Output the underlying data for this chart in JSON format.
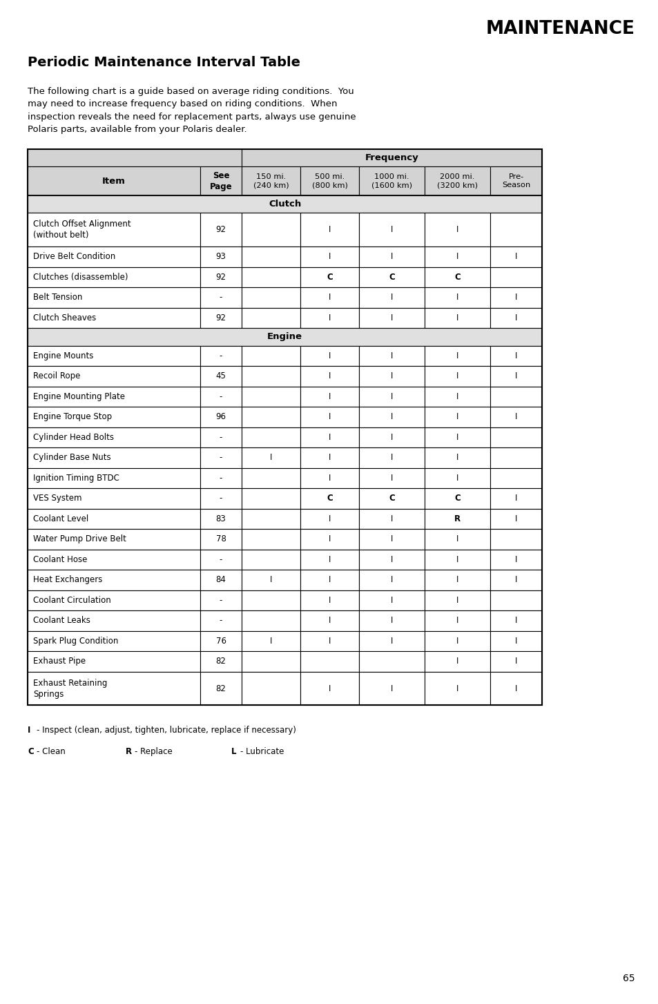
{
  "title_right": "MAINTENANCE",
  "subtitle": "Periodic Maintenance Interval Table",
  "body_text": "The following chart is a guide based on average riding conditions.  You\nmay need to increase frequency based on riding conditions.  When\ninspection reveals the need for replacement parts, always use genuine\nPolaris parts, available from your Polaris dealer.",
  "freq_labels": [
    "150 mi.\n(240 km)",
    "500 mi.\n(800 km)",
    "1000 mi.\n(1600 km)",
    "2000 mi.\n(3200 km)",
    "Pre-\nSeason"
  ],
  "section_clutch": "Clutch",
  "section_engine": "Engine",
  "rows": [
    {
      "item": "Clutch Offset Alignment\n(without belt)",
      "page": "92",
      "cols": [
        "",
        "I",
        "I",
        "I",
        ""
      ]
    },
    {
      "item": "Drive Belt Condition",
      "page": "93",
      "cols": [
        "",
        "I",
        "I",
        "I",
        "I"
      ]
    },
    {
      "item": "Clutches (disassemble)",
      "page": "92",
      "cols": [
        "",
        "C",
        "C",
        "C",
        ""
      ]
    },
    {
      "item": "Belt Tension",
      "page": "-",
      "cols": [
        "",
        "I",
        "I",
        "I",
        "I"
      ]
    },
    {
      "item": "Clutch Sheaves",
      "page": "92",
      "cols": [
        "",
        "I",
        "I",
        "I",
        "I"
      ]
    },
    {
      "item": "__ENGINE__",
      "page": "",
      "cols": [
        "",
        "",
        "",
        "",
        ""
      ]
    },
    {
      "item": "Engine Mounts",
      "page": "-",
      "cols": [
        "",
        "I",
        "I",
        "I",
        "I"
      ]
    },
    {
      "item": "Recoil Rope",
      "page": "45",
      "cols": [
        "",
        "I",
        "I",
        "I",
        "I"
      ]
    },
    {
      "item": "Engine Mounting Plate",
      "page": "-",
      "cols": [
        "",
        "I",
        "I",
        "I",
        ""
      ]
    },
    {
      "item": "Engine Torque Stop",
      "page": "96",
      "cols": [
        "",
        "I",
        "I",
        "I",
        "I"
      ]
    },
    {
      "item": "Cylinder Head Bolts",
      "page": "-",
      "cols": [
        "",
        "I",
        "I",
        "I",
        ""
      ]
    },
    {
      "item": "Cylinder Base Nuts",
      "page": "-",
      "cols": [
        "I",
        "I",
        "I",
        "I",
        ""
      ]
    },
    {
      "item": "Ignition Timing BTDC",
      "page": "-",
      "cols": [
        "",
        "I",
        "I",
        "I",
        ""
      ]
    },
    {
      "item": "VES System",
      "page": "-",
      "cols": [
        "",
        "C",
        "C",
        "C",
        "I"
      ]
    },
    {
      "item": "Coolant Level",
      "page": "83",
      "cols": [
        "",
        "I",
        "I",
        "R",
        "I"
      ]
    },
    {
      "item": "Water Pump Drive Belt",
      "page": "78",
      "cols": [
        "",
        "I",
        "I",
        "I",
        ""
      ]
    },
    {
      "item": "Coolant Hose",
      "page": "-",
      "cols": [
        "",
        "I",
        "I",
        "I",
        "I"
      ]
    },
    {
      "item": "Heat Exchangers",
      "page": "84",
      "cols": [
        "I",
        "I",
        "I",
        "I",
        "I"
      ]
    },
    {
      "item": "Coolant Circulation",
      "page": "-",
      "cols": [
        "",
        "I",
        "I",
        "I",
        ""
      ]
    },
    {
      "item": "Coolant Leaks",
      "page": "-",
      "cols": [
        "",
        "I",
        "I",
        "I",
        "I"
      ]
    },
    {
      "item": "Spark Plug Condition",
      "page": "76",
      "cols": [
        "I",
        "I",
        "I",
        "I",
        "I"
      ]
    },
    {
      "item": "Exhaust Pipe",
      "page": "82",
      "cols": [
        "",
        "",
        "",
        "I",
        "I"
      ]
    },
    {
      "item": "Exhaust Retaining\nSprings",
      "page": "82",
      "cols": [
        "",
        "I",
        "I",
        "I",
        "I"
      ]
    }
  ],
  "page_number": "65",
  "bg_header_color": "#d3d3d3",
  "bg_section_color": "#e0e0e0",
  "border_color": "#000000",
  "text_color": "#000000"
}
